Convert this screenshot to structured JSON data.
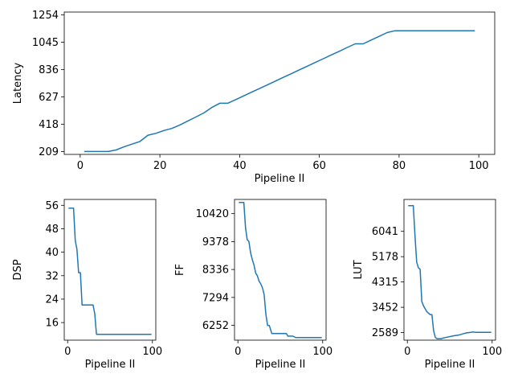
{
  "chart_data": [
    {
      "type": "line",
      "xlabel": "Pipeline II",
      "ylabel": "Latency",
      "xlim": [
        -4,
        104
      ],
      "ylim": [
        187,
        1276
      ],
      "xticks": [
        0,
        20,
        40,
        60,
        80,
        100
      ],
      "yticks": [
        209,
        418,
        627,
        836,
        1045,
        1254
      ],
      "color": "#1f77b4",
      "series": [
        {
          "x": [
            1,
            3,
            5,
            7,
            9,
            11,
            13,
            15,
            17,
            19,
            21,
            23,
            25,
            27,
            29,
            31,
            33,
            35,
            37,
            39,
            41,
            43,
            45,
            47,
            49,
            51,
            53,
            55,
            57,
            59,
            61,
            63,
            65,
            67,
            69,
            71,
            73,
            75,
            77,
            79,
            81,
            83,
            85,
            87,
            89,
            91,
            93,
            95,
            97,
            99
          ],
          "values": [
            209,
            209,
            209,
            209,
            221,
            245,
            266,
            286,
            334,
            348,
            370,
            386,
            412,
            443,
            473,
            504,
            546,
            578,
            578,
            606,
            634,
            663,
            691,
            720,
            748,
            777,
            805,
            834,
            862,
            891,
            919,
            948,
            976,
            1005,
            1033,
            1033,
            1062,
            1090,
            1119,
            1133,
            1133,
            1133,
            1133,
            1133,
            1133,
            1133,
            1133,
            1133,
            1133,
            1133
          ]
        }
      ]
    },
    {
      "type": "line",
      "xlabel": "Pipeline II",
      "ylabel": "DSP",
      "xlim": [
        -4,
        104
      ],
      "ylim": [
        10,
        58
      ],
      "xticks": [
        0,
        100
      ],
      "yticks": [
        16,
        24,
        32,
        40,
        48,
        56
      ],
      "color": "#1f77b4",
      "series": [
        {
          "x": [
            1,
            7,
            9,
            11,
            13,
            15,
            17,
            20,
            30,
            32,
            34,
            36,
            40,
            60,
            80,
            99
          ],
          "values": [
            55,
            55,
            44,
            41,
            33,
            33,
            22,
            22,
            22,
            19,
            12,
            12,
            12,
            12,
            12,
            12
          ]
        }
      ]
    },
    {
      "type": "line",
      "xlabel": "Pipeline II",
      "ylabel": "FF",
      "xlim": [
        -4,
        104
      ],
      "ylim": [
        5700,
        10950
      ],
      "xticks": [
        0,
        100
      ],
      "yticks": [
        6252,
        7294,
        8336,
        9378,
        10420
      ],
      "color": "#1f77b4",
      "series": [
        {
          "x": [
            1,
            7,
            9,
            11,
            13,
            15,
            17,
            19,
            21,
            23,
            25,
            27,
            29,
            31,
            33,
            35,
            37,
            40,
            42,
            45,
            57,
            59,
            65,
            68,
            70,
            99
          ],
          "values": [
            10840,
            10840,
            9900,
            9450,
            9380,
            8950,
            8700,
            8500,
            8200,
            8100,
            7900,
            7800,
            7650,
            7400,
            6650,
            6250,
            6250,
            5950,
            5950,
            5950,
            5950,
            5850,
            5850,
            5800,
            5800,
            5800
          ]
        }
      ]
    },
    {
      "type": "line",
      "xlabel": "Pipeline II",
      "ylabel": "LUT",
      "xlim": [
        -4,
        104
      ],
      "ylim": [
        2330,
        7130
      ],
      "xticks": [
        0,
        100
      ],
      "yticks": [
        2589,
        3452,
        4315,
        5178,
        6041
      ],
      "color": "#1f77b4",
      "series": [
        {
          "x": [
            1,
            7,
            9,
            11,
            13,
            15,
            17,
            19,
            21,
            23,
            25,
            27,
            29,
            31,
            33,
            35,
            37,
            40,
            42,
            45,
            55,
            60,
            65,
            70,
            75,
            78,
            80,
            99
          ],
          "values": [
            6920,
            6920,
            5900,
            5000,
            4800,
            4750,
            3650,
            3500,
            3400,
            3300,
            3250,
            3200,
            3200,
            2650,
            2420,
            2380,
            2380,
            2380,
            2400,
            2420,
            2480,
            2500,
            2540,
            2580,
            2600,
            2610,
            2600,
            2600
          ]
        }
      ]
    }
  ]
}
